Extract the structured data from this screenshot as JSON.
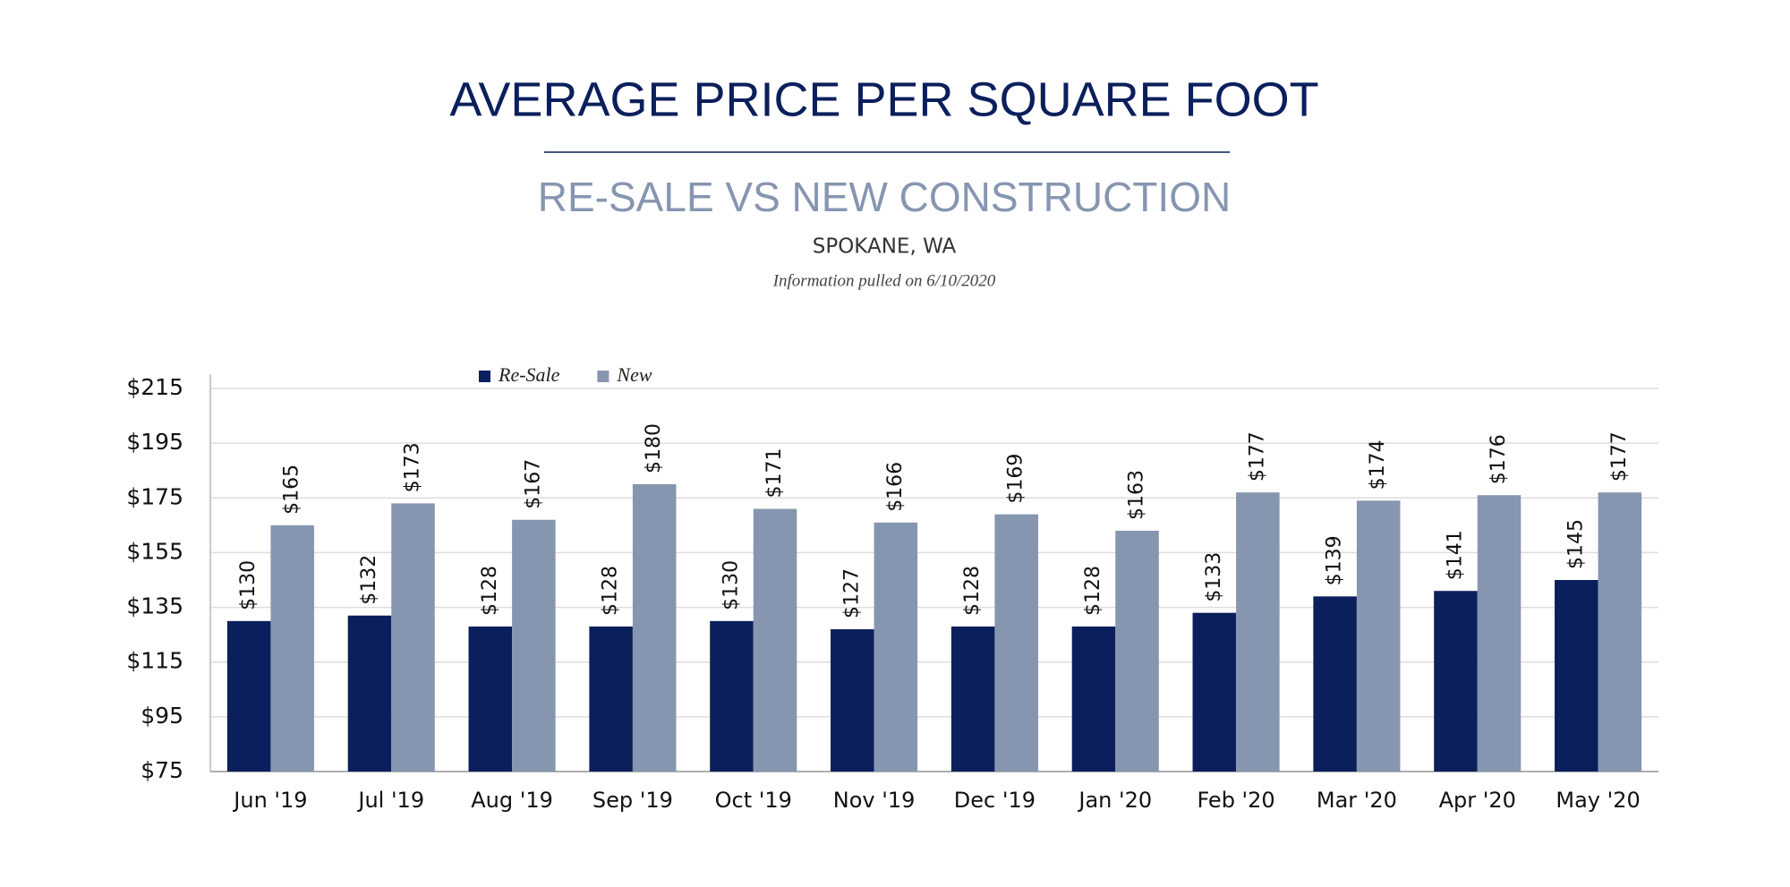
{
  "chart_data": {
    "type": "bar",
    "title": "AVERAGE PRICE PER SQUARE FOOT",
    "subtitle": "RE-SALE VS NEW CONSTRUCTION",
    "location": "SPOKANE, WA",
    "note": "Information pulled on 6/10/2020",
    "categories": [
      "Jun '19",
      "Jul '19",
      "Aug '19",
      "Sep '19",
      "Oct '19",
      "Nov '19",
      "Dec '19",
      "Jan '20",
      "Feb '20",
      "Mar '20",
      "Apr '20",
      "May '20"
    ],
    "series": [
      {
        "name": "Re-Sale",
        "color": "#0b1f5c",
        "values": [
          130,
          132,
          128,
          128,
          130,
          127,
          128,
          128,
          133,
          139,
          141,
          145
        ],
        "value_labels": [
          "$130",
          "$132",
          "$128",
          "$128",
          "$130",
          "$127",
          "$128",
          "$128",
          "$133",
          "$139",
          "$141",
          "$145"
        ]
      },
      {
        "name": "New",
        "color": "#8696b0",
        "values": [
          165,
          173,
          167,
          180,
          171,
          166,
          169,
          163,
          177,
          174,
          176,
          177
        ],
        "value_labels": [
          "$165",
          "$173",
          "$167",
          "$180",
          "$171",
          "$166",
          "$169",
          "$163",
          "$177",
          "$174",
          "$176",
          "$177"
        ]
      }
    ],
    "ylim": [
      75,
      215
    ],
    "yticks": [
      {
        "value": 75,
        "label": "$75"
      },
      {
        "value": 95,
        "label": "$95"
      },
      {
        "value": 115,
        "label": "$115"
      },
      {
        "value": 135,
        "label": "$135"
      },
      {
        "value": 155,
        "label": "$155"
      },
      {
        "value": 175,
        "label": "$175"
      },
      {
        "value": 195,
        "label": "$195"
      },
      {
        "value": 215,
        "label": "$215"
      }
    ],
    "grid": true,
    "legend": "top"
  }
}
